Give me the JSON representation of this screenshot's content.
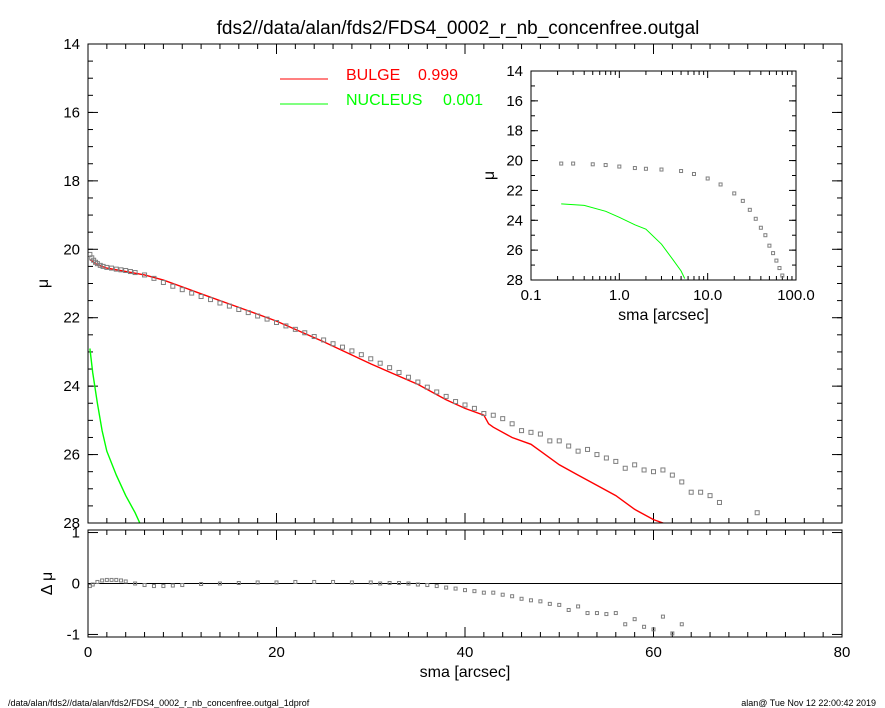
{
  "title": "fds2//data/alan/fds2/FDS4_0002_r_nb_concenfree.outgal",
  "footer": {
    "left": "/data/alan/fds2//data/alan/fds2/FDS4_0002_r_nb_concenfree.outgal_1dprof",
    "right": "alan@  Tue Nov 12 22:00:42 2019"
  },
  "legend": [
    {
      "label": "BULGE",
      "value": "0.999",
      "color": "#ff0000"
    },
    {
      "label": "NUCLEUS",
      "value": "0.001",
      "color": "#00ff00"
    }
  ],
  "chart_data": [
    {
      "panel": "main",
      "type": "line",
      "xlabel": "sma [arcsec]",
      "ylabel": "μ",
      "xlim": [
        0,
        80
      ],
      "ylim": [
        28,
        14
      ],
      "y_inverted": true,
      "xticks": [
        "0",
        "20",
        "40",
        "60",
        "80"
      ],
      "yticks": [
        "14",
        "16",
        "18",
        "20",
        "22",
        "24",
        "26",
        "28"
      ],
      "series": [
        {
          "name": "BULGE",
          "color": "#ff0000",
          "x": [
            0.2,
            1,
            2,
            4,
            6,
            8,
            10,
            12,
            15,
            20,
            25,
            30,
            35,
            38,
            40,
            42,
            42.5,
            43,
            45,
            47,
            48,
            50,
            52,
            54,
            56,
            58,
            60,
            62
          ],
          "y": [
            20.3,
            20.45,
            20.55,
            20.65,
            20.75,
            20.9,
            21.1,
            21.3,
            21.6,
            22.1,
            22.7,
            23.35,
            23.95,
            24.4,
            24.65,
            24.85,
            25.1,
            25.2,
            25.5,
            25.7,
            25.9,
            26.3,
            26.6,
            26.9,
            27.2,
            27.6,
            27.9,
            28.1
          ]
        },
        {
          "name": "NUCLEUS",
          "color": "#00ff00",
          "x": [
            0.2,
            0.5,
            1,
            1.5,
            2,
            3,
            4,
            5,
            5.5
          ],
          "y": [
            22.9,
            23.6,
            24.5,
            25.3,
            25.9,
            26.6,
            27.2,
            27.7,
            28.0
          ]
        },
        {
          "name": "data",
          "color": "#7f7f7f",
          "x": [
            0.2,
            0.4,
            0.6,
            0.8,
            1,
            1.3,
            1.6,
            2,
            2.5,
            3,
            3.5,
            4,
            4.5,
            5,
            6,
            7,
            8,
            9,
            10,
            11,
            12,
            13,
            14,
            15,
            16,
            17,
            18,
            19,
            20,
            21,
            22,
            23,
            24,
            25,
            26,
            27,
            28,
            29,
            30,
            31,
            32,
            33,
            34,
            35,
            36,
            37,
            38,
            39,
            40,
            41,
            42,
            43,
            44,
            45,
            46,
            47,
            48,
            49,
            50,
            51,
            52,
            53,
            54,
            55,
            56,
            57,
            58,
            59,
            60,
            61,
            62,
            63,
            64,
            65,
            66,
            67,
            71
          ],
          "y": [
            20.15,
            20.25,
            20.32,
            20.38,
            20.42,
            20.47,
            20.5,
            20.53,
            20.55,
            20.58,
            20.6,
            20.62,
            20.65,
            20.68,
            20.75,
            20.85,
            20.97,
            21.08,
            21.18,
            21.28,
            21.38,
            21.47,
            21.57,
            21.66,
            21.76,
            21.85,
            21.95,
            22.04,
            22.14,
            22.24,
            22.34,
            22.44,
            22.55,
            22.65,
            22.76,
            22.86,
            22.97,
            23.08,
            23.2,
            23.33,
            23.46,
            23.6,
            23.74,
            23.88,
            24.03,
            24.17,
            24.3,
            24.45,
            24.55,
            24.65,
            24.8,
            24.85,
            24.95,
            25.1,
            25.3,
            25.35,
            25.4,
            25.6,
            25.6,
            25.75,
            25.9,
            25.85,
            26.0,
            26.1,
            26.2,
            26.4,
            26.3,
            26.45,
            26.5,
            26.45,
            26.6,
            26.8,
            27.1,
            27.1,
            27.2,
            27.4,
            27.7
          ]
        }
      ]
    },
    {
      "panel": "inset",
      "type": "line",
      "xlabel": "sma [arcsec]",
      "ylabel": "μ",
      "x_scale": "log",
      "xlim": [
        0.1,
        100
      ],
      "ylim": [
        28,
        14
      ],
      "y_inverted": true,
      "xticks": [
        "0.1",
        "1.0",
        "10.0",
        "100.0"
      ],
      "yticks": [
        "14",
        "16",
        "18",
        "20",
        "22",
        "24",
        "26",
        "28"
      ],
      "series": [
        {
          "name": "data",
          "color": "#7f7f7f",
          "x": [
            0.22,
            0.3,
            0.5,
            0.7,
            1,
            1.5,
            2,
            3,
            5,
            7,
            10,
            14,
            20,
            25,
            30,
            35,
            40,
            45,
            50,
            55,
            60,
            65,
            70
          ],
          "y": [
            20.2,
            20.2,
            20.25,
            20.3,
            20.4,
            20.5,
            20.55,
            20.6,
            20.7,
            20.9,
            21.2,
            21.6,
            22.2,
            22.7,
            23.3,
            23.9,
            24.5,
            25.0,
            25.7,
            26.2,
            26.7,
            27.2,
            27.7
          ]
        },
        {
          "name": "NUCLEUS",
          "color": "#00ff00",
          "x": [
            0.22,
            0.4,
            0.7,
            1,
            1.5,
            2,
            3,
            4,
            5,
            5.5
          ],
          "y": [
            22.9,
            23.0,
            23.4,
            23.8,
            24.3,
            24.6,
            25.6,
            26.6,
            27.4,
            27.9
          ]
        }
      ]
    },
    {
      "panel": "residual",
      "type": "scatter",
      "xlabel": "sma [arcsec]",
      "ylabel": "Δ μ",
      "xlim": [
        0,
        80
      ],
      "ylim": [
        -1.05,
        1.05
      ],
      "xticks": [
        "0",
        "20",
        "40",
        "60",
        "80"
      ],
      "yticks": [
        "1",
        "0",
        "-1"
      ],
      "zero_line": true,
      "series": [
        {
          "name": "residual",
          "color": "#7f7f7f",
          "x": [
            0.2,
            0.5,
            1,
            1.5,
            2,
            2.5,
            3,
            3.5,
            4,
            5,
            6,
            7,
            8,
            9,
            10,
            12,
            14,
            16,
            18,
            20,
            22,
            24,
            26,
            28,
            30,
            31,
            32,
            33,
            34,
            35,
            36,
            37,
            38,
            39,
            40,
            41,
            42,
            43,
            44,
            45,
            46,
            47,
            48,
            49,
            50,
            51,
            52,
            53,
            54,
            55,
            56,
            57,
            58,
            59,
            60,
            61,
            62,
            63
          ],
          "y": [
            -0.05,
            -0.02,
            0.03,
            0.06,
            0.07,
            0.07,
            0.07,
            0.06,
            0.04,
            0.0,
            -0.03,
            -0.05,
            -0.05,
            -0.04,
            -0.03,
            -0.01,
            0.0,
            0.01,
            0.02,
            0.02,
            0.03,
            0.03,
            0.03,
            0.02,
            0.02,
            0.0,
            0.01,
            0.01,
            0.0,
            -0.02,
            -0.03,
            -0.05,
            -0.08,
            -0.1,
            -0.13,
            -0.15,
            -0.18,
            -0.18,
            -0.22,
            -0.25,
            -0.3,
            -0.33,
            -0.35,
            -0.4,
            -0.42,
            -0.52,
            -0.45,
            -0.58,
            -0.58,
            -0.6,
            -0.58,
            -0.8,
            -0.7,
            -0.85,
            -0.9,
            -0.65,
            -0.98,
            -0.8
          ]
        }
      ]
    }
  ]
}
